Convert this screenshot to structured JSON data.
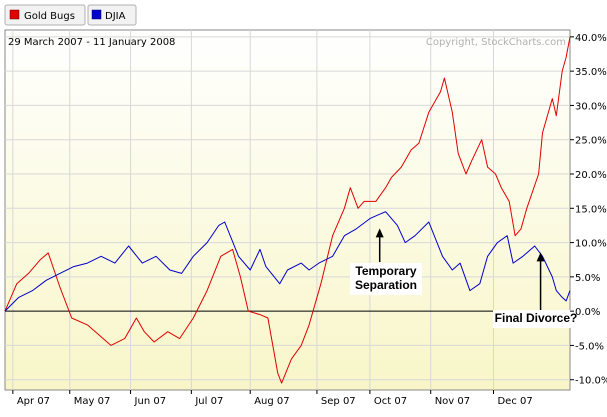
{
  "legend_tabs": [
    {
      "label": "Gold Bugs",
      "color": "#e00000"
    },
    {
      "label": "DJIA",
      "color": "#0000cc"
    }
  ],
  "date_range": "29 March 2007 - 11 January 2008",
  "copyright": "Copyright, StockCharts.com",
  "chart_data": {
    "type": "line",
    "ylim": [
      -11.5,
      41
    ],
    "y_ticks": [
      40,
      35,
      30,
      25,
      20,
      15,
      10,
      5,
      0,
      -5,
      -10
    ],
    "y_tick_labels": [
      "40.0%",
      "35.0%",
      "30.0%",
      "25.0%",
      "20.0%",
      "15.0%",
      "10.0%",
      "5.0%",
      "0.0%",
      "-5.0%",
      "-10.0%"
    ],
    "x_range": [
      "2007-03-29",
      "2008-01-11"
    ],
    "x_ticks": [
      {
        "label": "Apr 07",
        "date": "2007-04-02"
      },
      {
        "label": "May 07",
        "date": "2007-05-01"
      },
      {
        "label": "Jun 07",
        "date": "2007-06-01"
      },
      {
        "label": "Jul 07",
        "date": "2007-07-02"
      },
      {
        "label": "Aug 07",
        "date": "2007-08-01"
      },
      {
        "label": "Sep 07",
        "date": "2007-09-04"
      },
      {
        "label": "Oct 07",
        "date": "2007-10-01"
      },
      {
        "label": "Nov 07",
        "date": "2007-11-01"
      },
      {
        "label": "Dec 07",
        "date": "2007-12-03"
      }
    ],
    "series": [
      {
        "name": "Gold Bugs",
        "color": "#e00000",
        "points": [
          [
            "2007-03-29",
            0
          ],
          [
            "2007-04-04",
            4
          ],
          [
            "2007-04-10",
            5.5
          ],
          [
            "2007-04-16",
            7.5
          ],
          [
            "2007-04-20",
            8.5
          ],
          [
            "2007-04-26",
            3.5
          ],
          [
            "2007-05-02",
            -1
          ],
          [
            "2007-05-10",
            -2
          ],
          [
            "2007-05-16",
            -3.5
          ],
          [
            "2007-05-22",
            -5
          ],
          [
            "2007-05-29",
            -4
          ],
          [
            "2007-06-04",
            -1
          ],
          [
            "2007-06-08",
            -3
          ],
          [
            "2007-06-13",
            -4.5
          ],
          [
            "2007-06-20",
            -3
          ],
          [
            "2007-06-26",
            -4
          ],
          [
            "2007-07-03",
            -1
          ],
          [
            "2007-07-10",
            3
          ],
          [
            "2007-07-17",
            8
          ],
          [
            "2007-07-23",
            9
          ],
          [
            "2007-07-27",
            5
          ],
          [
            "2007-07-31",
            0
          ],
          [
            "2007-08-06",
            -0.5
          ],
          [
            "2007-08-10",
            -1
          ],
          [
            "2007-08-15",
            -9
          ],
          [
            "2007-08-17",
            -10.5
          ],
          [
            "2007-08-22",
            -7
          ],
          [
            "2007-08-27",
            -5
          ],
          [
            "2007-08-31",
            -2
          ],
          [
            "2007-09-06",
            4
          ],
          [
            "2007-09-12",
            11
          ],
          [
            "2007-09-18",
            15
          ],
          [
            "2007-09-21",
            18
          ],
          [
            "2007-09-25",
            15
          ],
          [
            "2007-09-28",
            16
          ],
          [
            "2007-10-04",
            16
          ],
          [
            "2007-10-09",
            18
          ],
          [
            "2007-10-12",
            19.5
          ],
          [
            "2007-10-17",
            21
          ],
          [
            "2007-10-22",
            23.5
          ],
          [
            "2007-10-26",
            24.5
          ],
          [
            "2007-10-31",
            29
          ],
          [
            "2007-11-06",
            32
          ],
          [
            "2007-11-08",
            34
          ],
          [
            "2007-11-12",
            29
          ],
          [
            "2007-11-15",
            23
          ],
          [
            "2007-11-19",
            20
          ],
          [
            "2007-11-22",
            22
          ],
          [
            "2007-11-27",
            25
          ],
          [
            "2007-11-30",
            21
          ],
          [
            "2007-12-04",
            20
          ],
          [
            "2007-12-07",
            18
          ],
          [
            "2007-12-11",
            16
          ],
          [
            "2007-12-14",
            11
          ],
          [
            "2007-12-17",
            12
          ],
          [
            "2007-12-20",
            15
          ],
          [
            "2007-12-26",
            20
          ],
          [
            "2007-12-28",
            26
          ],
          [
            "2008-01-02",
            31
          ],
          [
            "2008-01-04",
            28.5
          ],
          [
            "2008-01-07",
            35
          ],
          [
            "2008-01-09",
            37
          ],
          [
            "2008-01-11",
            40
          ]
        ]
      },
      {
        "name": "DJIA",
        "color": "#0000cc",
        "points": [
          [
            "2007-03-29",
            0
          ],
          [
            "2007-04-05",
            2
          ],
          [
            "2007-04-12",
            3
          ],
          [
            "2007-04-19",
            4.5
          ],
          [
            "2007-04-26",
            5.5
          ],
          [
            "2007-05-03",
            6.5
          ],
          [
            "2007-05-10",
            7
          ],
          [
            "2007-05-17",
            8
          ],
          [
            "2007-05-24",
            7
          ],
          [
            "2007-05-31",
            9.5
          ],
          [
            "2007-06-07",
            7
          ],
          [
            "2007-06-14",
            8
          ],
          [
            "2007-06-21",
            6
          ],
          [
            "2007-06-27",
            5.5
          ],
          [
            "2007-07-03",
            8
          ],
          [
            "2007-07-10",
            10
          ],
          [
            "2007-07-16",
            12.5
          ],
          [
            "2007-07-19",
            13
          ],
          [
            "2007-07-26",
            8
          ],
          [
            "2007-08-01",
            6
          ],
          [
            "2007-08-06",
            9
          ],
          [
            "2007-08-09",
            6.5
          ],
          [
            "2007-08-16",
            4
          ],
          [
            "2007-08-20",
            6
          ],
          [
            "2007-08-27",
            7
          ],
          [
            "2007-08-31",
            6
          ],
          [
            "2007-09-05",
            7
          ],
          [
            "2007-09-12",
            8
          ],
          [
            "2007-09-18",
            11
          ],
          [
            "2007-09-24",
            12
          ],
          [
            "2007-10-01",
            13.5
          ],
          [
            "2007-10-05",
            14
          ],
          [
            "2007-10-09",
            14.5
          ],
          [
            "2007-10-15",
            12.5
          ],
          [
            "2007-10-19",
            10
          ],
          [
            "2007-10-24",
            11
          ],
          [
            "2007-10-31",
            13
          ],
          [
            "2007-11-07",
            8
          ],
          [
            "2007-11-12",
            6
          ],
          [
            "2007-11-16",
            7
          ],
          [
            "2007-11-21",
            3
          ],
          [
            "2007-11-26",
            4
          ],
          [
            "2007-11-30",
            8
          ],
          [
            "2007-12-05",
            10
          ],
          [
            "2007-12-10",
            11
          ],
          [
            "2007-12-13",
            7
          ],
          [
            "2007-12-18",
            8
          ],
          [
            "2007-12-24",
            9.5
          ],
          [
            "2007-12-28",
            8
          ],
          [
            "2008-01-02",
            5
          ],
          [
            "2008-01-04",
            3
          ],
          [
            "2008-01-07",
            2
          ],
          [
            "2008-01-09",
            1.5
          ],
          [
            "2008-01-11",
            3
          ]
        ]
      }
    ],
    "annotations": [
      {
        "lines": [
          "Temporary",
          "Separation"
        ],
        "arrow_to": [
          "2007-10-06",
          12.5
        ]
      },
      {
        "lines": [
          "Final Divorce?"
        ],
        "arrow_to": [
          "2007-12-27",
          9
        ]
      }
    ]
  }
}
